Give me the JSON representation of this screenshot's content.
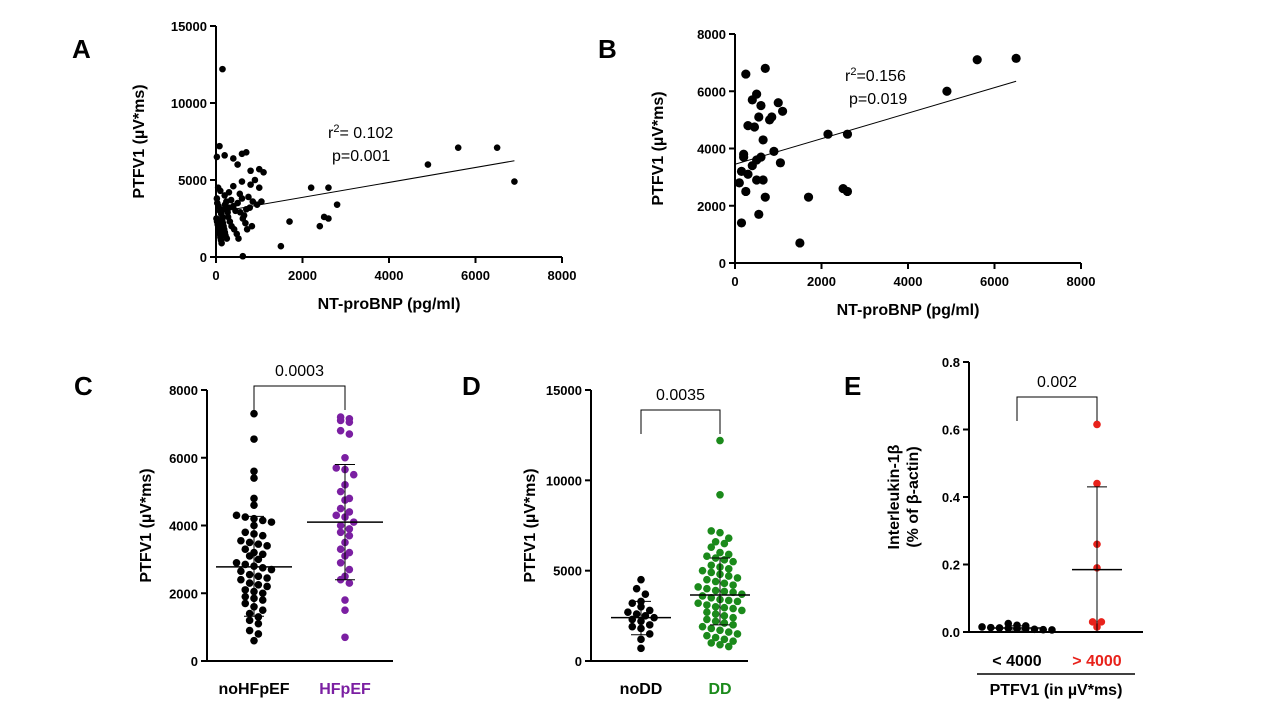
{
  "chart_data": [
    {
      "panel": "A",
      "type": "scatter",
      "xlabel": "NT-proBNP (pg/ml)",
      "ylabel": "PTFV1 (µV*ms)",
      "xlim": [
        0,
        8000
      ],
      "ylim": [
        0,
        15000
      ],
      "xticks": [
        0,
        2000,
        4000,
        6000,
        8000
      ],
      "yticks": [
        0,
        5000,
        10000,
        15000
      ],
      "annotation": [
        "r2= 0.102",
        "p=0.001"
      ],
      "trendline": {
        "x": [
          0,
          6900
        ],
        "y": [
          2900,
          6250
        ]
      },
      "points": [
        [
          150,
          12200
        ],
        [
          80,
          7200
        ],
        [
          20,
          6500
        ],
        [
          200,
          6600
        ],
        [
          400,
          6400
        ],
        [
          500,
          6000
        ],
        [
          600,
          6700
        ],
        [
          700,
          6800
        ],
        [
          800,
          5600
        ],
        [
          900,
          5000
        ],
        [
          1000,
          5700
        ],
        [
          1100,
          5500
        ],
        [
          1000,
          4500
        ],
        [
          800,
          4700
        ],
        [
          600,
          4900
        ],
        [
          400,
          4600
        ],
        [
          300,
          4200
        ],
        [
          200,
          4000
        ],
        [
          100,
          4300
        ],
        [
          50,
          4500
        ],
        [
          20,
          3800
        ],
        [
          30,
          3500
        ],
        [
          60,
          3300
        ],
        [
          90,
          3000
        ],
        [
          120,
          2800
        ],
        [
          150,
          2600
        ],
        [
          180,
          3100
        ],
        [
          210,
          3400
        ],
        [
          240,
          3600
        ],
        [
          270,
          2900
        ],
        [
          300,
          3200
        ],
        [
          350,
          3700
        ],
        [
          400,
          3300
        ],
        [
          450,
          3000
        ],
        [
          500,
          3500
        ],
        [
          550,
          4100
        ],
        [
          600,
          3800
        ],
        [
          650,
          2700
        ],
        [
          700,
          3100
        ],
        [
          750,
          3900
        ],
        [
          850,
          3600
        ],
        [
          950,
          3400
        ],
        [
          1050,
          3600
        ],
        [
          10,
          2500
        ],
        [
          25,
          2300
        ],
        [
          40,
          2100
        ],
        [
          55,
          1900
        ],
        [
          70,
          1700
        ],
        [
          85,
          1500
        ],
        [
          100,
          1300
        ],
        [
          115,
          1100
        ],
        [
          130,
          900
        ],
        [
          145,
          2400
        ],
        [
          160,
          2200
        ],
        [
          175,
          2000
        ],
        [
          190,
          1800
        ],
        [
          205,
          1600
        ],
        [
          220,
          1400
        ],
        [
          250,
          1200
        ],
        [
          280,
          2600
        ],
        [
          320,
          2300
        ],
        [
          360,
          2000
        ],
        [
          420,
          1800
        ],
        [
          480,
          1500
        ],
        [
          520,
          1200
        ],
        [
          560,
          2900
        ],
        [
          620,
          2500
        ],
        [
          680,
          2200
        ],
        [
          720,
          1800
        ],
        [
          780,
          3200
        ],
        [
          830,
          2000
        ],
        [
          620,
          50
        ],
        [
          1500,
          700
        ],
        [
          1700,
          2300
        ],
        [
          2200,
          4500
        ],
        [
          2400,
          2000
        ],
        [
          2500,
          2600
        ],
        [
          2600,
          4500
        ],
        [
          2600,
          2500
        ],
        [
          2800,
          3400
        ],
        [
          4900,
          6000
        ],
        [
          5600,
          7100
        ],
        [
          6500,
          7100
        ],
        [
          6900,
          4900
        ]
      ]
    },
    {
      "panel": "B",
      "type": "scatter",
      "xlabel": "NT-proBNP (pg/ml)",
      "ylabel": "PTFV1 (µV*ms)",
      "xlim": [
        0,
        8000
      ],
      "ylim": [
        0,
        8000
      ],
      "xticks": [
        0,
        2000,
        4000,
        6000,
        8000
      ],
      "yticks": [
        0,
        2000,
        4000,
        6000,
        8000
      ],
      "annotation": [
        "r2=0.156",
        "p=0.019"
      ],
      "trendline": {
        "x": [
          0,
          6500
        ],
        "y": [
          3450,
          6350
        ]
      },
      "points": [
        [
          250,
          6600
        ],
        [
          700,
          6800
        ],
        [
          400,
          5700
        ],
        [
          500,
          5900
        ],
        [
          600,
          5500
        ],
        [
          800,
          5000
        ],
        [
          550,
          5100
        ],
        [
          1000,
          5600
        ],
        [
          1100,
          5300
        ],
        [
          300,
          4800
        ],
        [
          450,
          4750
        ],
        [
          650,
          4300
        ],
        [
          400,
          3400
        ],
        [
          300,
          3100
        ],
        [
          200,
          3700
        ],
        [
          150,
          3200
        ],
        [
          100,
          2800
        ],
        [
          250,
          2500
        ],
        [
          500,
          2900
        ],
        [
          650,
          2900
        ],
        [
          500,
          3600
        ],
        [
          600,
          3700
        ],
        [
          900,
          3900
        ],
        [
          1050,
          3500
        ],
        [
          200,
          3800
        ],
        [
          700,
          2300
        ],
        [
          1700,
          2300
        ],
        [
          2150,
          4500
        ],
        [
          2600,
          4500
        ],
        [
          2500,
          2600
        ],
        [
          2600,
          2500
        ],
        [
          1500,
          700
        ],
        [
          4900,
          6000
        ],
        [
          5600,
          7100
        ],
        [
          6500,
          7150
        ],
        [
          150,
          1400
        ],
        [
          550,
          1700
        ],
        [
          850,
          5100
        ]
      ]
    },
    {
      "panel": "C",
      "type": "scatter",
      "ylabel": "PTFV1 (µV*ms)",
      "ylim": [
        0,
        8000
      ],
      "yticks": [
        0,
        2000,
        4000,
        6000,
        8000
      ],
      "categories": [
        "noHFpEF",
        "HFpEF"
      ],
      "category_colors": [
        "#000000",
        "#7b1fa2"
      ],
      "p_value": "0.0003",
      "groups": [
        {
          "name": "noHFpEF",
          "color": "#000000",
          "mean": 2780,
          "sd_low": 1320,
          "sd_high": 4270,
          "values": [
            7300,
            6550,
            5600,
            5400,
            4800,
            4600,
            4300,
            4250,
            4200,
            4150,
            4100,
            4000,
            3800,
            3750,
            3700,
            3550,
            3500,
            3450,
            3400,
            3300,
            3200,
            3150,
            3100,
            3000,
            2900,
            2850,
            2800,
            2750,
            2700,
            2650,
            2550,
            2500,
            2450,
            2400,
            2300,
            2250,
            2200,
            2100,
            2050,
            2000,
            1900,
            1850,
            1800,
            1700,
            1600,
            1500,
            1400,
            1300,
            1200,
            1100,
            900,
            800,
            600
          ]
        },
        {
          "name": "HFpEF",
          "color": "#7b1fa2",
          "mean": 4100,
          "sd_low": 2400,
          "sd_high": 5800,
          "values": [
            7200,
            7150,
            7100,
            7050,
            6800,
            6700,
            6000,
            5700,
            5650,
            5500,
            5200,
            5000,
            4800,
            4750,
            4500,
            4400,
            4300,
            4250,
            4100,
            4000,
            3900,
            3800,
            3700,
            3500,
            3300,
            3200,
            3100,
            2900,
            2700,
            2500,
            2400,
            2300,
            1800,
            1500,
            700
          ]
        }
      ]
    },
    {
      "panel": "D",
      "type": "scatter",
      "ylabel": "PTFV1 (µV*ms)",
      "ylim": [
        0,
        15000
      ],
      "yticks": [
        0,
        5000,
        10000,
        15000
      ],
      "categories": [
        "noDD",
        "DD"
      ],
      "category_colors": [
        "#000000",
        "#1b8a1b"
      ],
      "p_value": "0.0035",
      "groups": [
        {
          "name": "noDD",
          "color": "#000000",
          "mean": 2400,
          "sd_low": 1450,
          "sd_high": 3300,
          "values": [
            4500,
            4000,
            3700,
            3300,
            3200,
            3000,
            2800,
            2700,
            2600,
            2500,
            2400,
            2300,
            2200,
            2000,
            1900,
            1800,
            1500,
            1200,
            700
          ]
        },
        {
          "name": "DD",
          "color": "#1b8a1b",
          "mean": 3650,
          "sd_low": 2000,
          "sd_high": 5700,
          "values": [
            12200,
            9200,
            7200,
            7100,
            6800,
            6600,
            6500,
            6300,
            6000,
            5900,
            5800,
            5700,
            5600,
            5500,
            5300,
            5200,
            5100,
            5000,
            4900,
            4800,
            4700,
            4600,
            4500,
            4400,
            4300,
            4200,
            4100,
            4000,
            3900,
            3850,
            3800,
            3700,
            3600,
            3500,
            3400,
            3350,
            3300,
            3200,
            3100,
            3000,
            2950,
            2900,
            2800,
            2700,
            2600,
            2500,
            2400,
            2300,
            2200,
            2100,
            2000,
            1900,
            1800,
            1700,
            1600,
            1500,
            1400,
            1300,
            1200,
            1100,
            1000,
            900,
            800
          ]
        }
      ]
    },
    {
      "panel": "E",
      "type": "scatter",
      "ylabel_lines": [
        "Interleukin-1β",
        "(% of β-actin)"
      ],
      "ylim": [
        0,
        0.8
      ],
      "yticks": [
        "0.0",
        "0.2",
        "0.4",
        "0.6",
        "0.8"
      ],
      "categories": [
        "< 4000",
        "> 4000"
      ],
      "category_colors": [
        "#000000",
        "#e8221b"
      ],
      "xlabel": "PTFV1 (in µV*ms)",
      "p_value": "0.002",
      "groups": [
        {
          "name": "< 4000",
          "color": "#000000",
          "mean": 0.012,
          "sd_low": 0.006,
          "sd_high": 0.018,
          "values": [
            0.025,
            0.02,
            0.018,
            0.015,
            0.013,
            0.012,
            0.011,
            0.01,
            0.009,
            0.008,
            0.007,
            0.006
          ]
        },
        {
          "name": "> 4000",
          "color": "#e8221b",
          "mean": 0.185,
          "sd_low": 0.0,
          "sd_high": 0.43,
          "values": [
            0.615,
            0.44,
            0.26,
            0.19,
            0.03,
            0.03,
            0.015
          ]
        }
      ]
    }
  ]
}
